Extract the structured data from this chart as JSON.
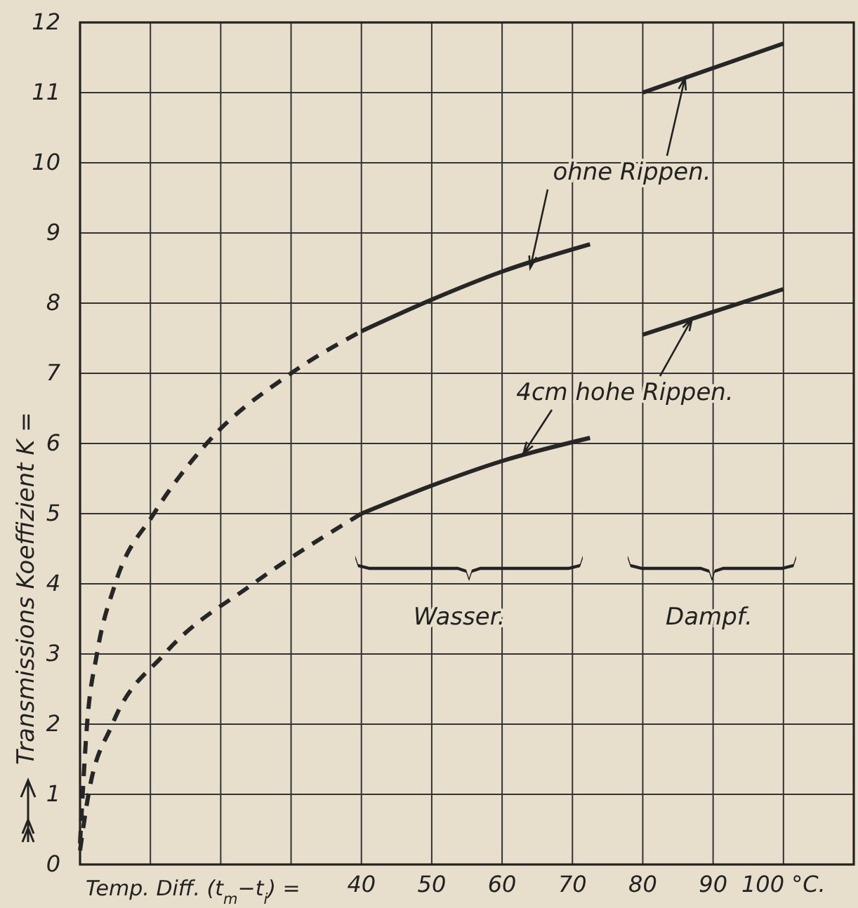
{
  "chart_data": {
    "type": "line",
    "xlabel": "Temp. Diff. (t$_{m}$−t$_{i}$) =",
    "ylabel": "Transmissions Koeffizient K =",
    "xlim": [
      0,
      110
    ],
    "ylim": [
      0,
      12
    ],
    "xticks": [
      {
        "value": 0,
        "label": null
      },
      {
        "value": 10,
        "label": null
      },
      {
        "value": 20,
        "label": null
      },
      {
        "value": 30,
        "label": null
      },
      40,
      50,
      60,
      70,
      80,
      90,
      {
        "value": 100,
        "label": "100 °C."
      }
    ],
    "yticks": [
      0,
      1,
      2,
      3,
      4,
      5,
      6,
      7,
      8,
      9,
      10,
      11,
      12
    ],
    "grid": true,
    "marker": "none",
    "series": [
      {
        "color": "#262626",
        "line_style": "dashed",
        "x": [
          0,
          1,
          2.4,
          5,
          10.5,
          18,
          30,
          40
        ],
        "values": [
          0.3,
          2,
          3,
          4,
          5,
          6,
          7,
          7.6
        ]
      },
      {
        "color": "#262626",
        "line_style": "solid",
        "x": [
          40,
          50,
          60,
          72.5
        ],
        "values": [
          7.6,
          8.05,
          8.45,
          8.84
        ]
      },
      {
        "color": "#262626",
        "line_style": "dashed",
        "x": [
          0,
          1.2,
          4.6,
          12,
          24.6,
          40
        ],
        "values": [
          0.2,
          1,
          2,
          3,
          4,
          5
        ]
      },
      {
        "color": "#262626",
        "line_style": "solid",
        "x": [
          40,
          50,
          60,
          72.5
        ],
        "values": [
          5,
          5.4,
          5.75,
          6.08
        ]
      },
      {
        "color": "#262626",
        "line_style": "solid",
        "x": [
          80,
          100
        ],
        "values": [
          11,
          11.7
        ]
      },
      {
        "color": "#262626",
        "line_style": "solid",
        "x": [
          80,
          100
        ],
        "values": [
          7.55,
          8.2
        ]
      }
    ],
    "annotations": [
      {
        "text": "ohne Rippen.",
        "x": 64,
        "y": 8.5
      },
      {
        "text": "4cm hohe Rippen.",
        "x": 63,
        "y": 5.85
      },
      "Wasser.",
      "Dampf."
    ]
  }
}
